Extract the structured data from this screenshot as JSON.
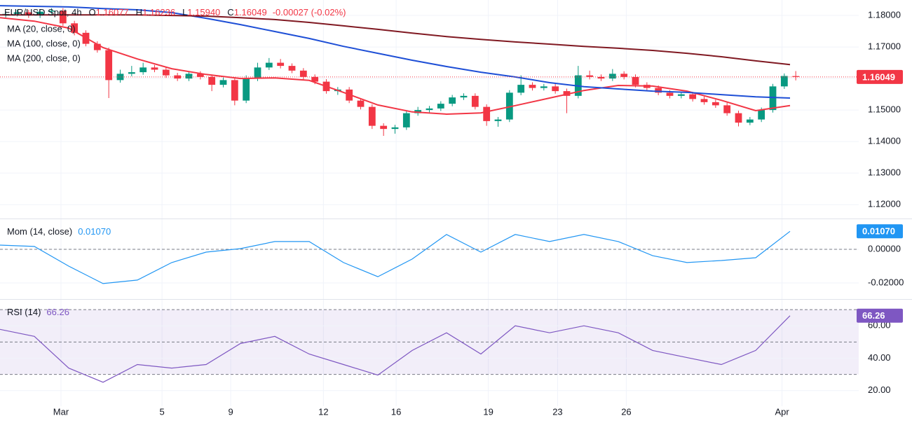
{
  "chart_data": [
    {
      "type": "candlestick",
      "title": "EUR/USD Spot, 4h",
      "ohlc_labels": [
        {
          "label": "O",
          "value": "1.16077"
        },
        {
          "label": "H",
          "value": "1.16236"
        },
        {
          "label": "L",
          "value": "1.15940"
        },
        {
          "label": "C",
          "value": "1.16049"
        }
      ],
      "change": "-0.00027 (-0.02%)",
      "x": [
        1,
        3,
        5,
        7,
        9,
        11,
        13,
        15,
        17,
        19,
        21,
        23,
        25,
        27,
        29,
        31,
        33,
        35,
        37,
        39,
        41,
        43,
        45,
        47,
        49,
        51,
        53,
        55,
        57,
        59,
        61,
        63,
        65,
        67,
        69,
        71,
        73,
        75,
        77,
        79,
        81,
        83,
        85,
        87,
        89,
        91,
        93,
        95,
        97,
        99,
        101,
        103,
        105,
        107,
        109,
        111,
        113,
        115,
        117,
        119,
        121,
        123,
        125,
        127,
        129,
        131,
        133,
        135,
        137,
        139
      ],
      "open": [
        1.18,
        1.1805,
        1.181,
        1.18,
        1.1812,
        1.1815,
        1.1775,
        1.1745,
        1.171,
        1.169,
        1.1595,
        1.1615,
        1.162,
        1.1635,
        1.1628,
        1.161,
        1.16,
        1.1615,
        1.1605,
        1.158,
        1.1595,
        1.153,
        1.16,
        1.1635,
        1.165,
        1.164,
        1.1625,
        1.1605,
        1.159,
        1.156,
        1.1565,
        1.153,
        1.151,
        1.145,
        1.144,
        1.1445,
        1.149,
        1.15,
        1.1505,
        1.152,
        1.154,
        1.1545,
        1.151,
        1.1465,
        1.147,
        1.1555,
        1.158,
        1.157,
        1.1575,
        1.156,
        1.1545,
        1.161,
        1.1605,
        1.16,
        1.1615,
        1.1605,
        1.158,
        1.157,
        1.1555,
        1.1545,
        1.155,
        1.1535,
        1.1525,
        1.1515,
        1.149,
        1.146,
        1.147,
        1.15,
        1.1575,
        1.16077
      ],
      "high": [
        1.1813,
        1.1818,
        1.1818,
        1.182,
        1.1823,
        1.1823,
        1.1783,
        1.1753,
        1.1718,
        1.1698,
        1.1628,
        1.164,
        1.165,
        1.1643,
        1.1636,
        1.1618,
        1.1623,
        1.1623,
        1.1613,
        1.1603,
        1.1603,
        1.161,
        1.165,
        1.1665,
        1.1662,
        1.1648,
        1.1633,
        1.1613,
        1.1598,
        1.1573,
        1.1573,
        1.1538,
        1.1518,
        1.1458,
        1.1453,
        1.1498,
        1.151,
        1.1513,
        1.1528,
        1.1548,
        1.1553,
        1.1553,
        1.1518,
        1.1478,
        1.1563,
        1.161,
        1.1588,
        1.1583,
        1.1583,
        1.1568,
        1.164,
        1.1625,
        1.1613,
        1.163,
        1.1623,
        1.1613,
        1.1588,
        1.1578,
        1.1563,
        1.1558,
        1.1558,
        1.1543,
        1.1533,
        1.1523,
        1.1498,
        1.1478,
        1.1508,
        1.1583,
        1.1616,
        1.16236
      ],
      "low": [
        1.1792,
        1.1797,
        1.1792,
        1.1792,
        1.1804,
        1.1767,
        1.1737,
        1.1702,
        1.1682,
        1.1538,
        1.1587,
        1.1607,
        1.1612,
        1.162,
        1.1602,
        1.1592,
        1.1592,
        1.1597,
        1.156,
        1.1572,
        1.1515,
        1.1522,
        1.1592,
        1.1627,
        1.1632,
        1.1617,
        1.1597,
        1.1582,
        1.1552,
        1.1548,
        1.1522,
        1.1502,
        1.144,
        1.1418,
        1.1425,
        1.1437,
        1.1482,
        1.1492,
        1.1497,
        1.1512,
        1.1532,
        1.1502,
        1.145,
        1.1447,
        1.1462,
        1.1547,
        1.1562,
        1.1562,
        1.1552,
        1.149,
        1.1537,
        1.1597,
        1.1592,
        1.1592,
        1.1597,
        1.1572,
        1.1562,
        1.1547,
        1.1537,
        1.1537,
        1.1527,
        1.1517,
        1.1507,
        1.1482,
        1.1448,
        1.1452,
        1.1462,
        1.1492,
        1.1567,
        1.1594
      ],
      "close": [
        1.1805,
        1.181,
        1.18,
        1.1812,
        1.1815,
        1.1775,
        1.1745,
        1.171,
        1.169,
        1.1595,
        1.1615,
        1.162,
        1.1635,
        1.1628,
        1.161,
        1.16,
        1.1615,
        1.1605,
        1.158,
        1.1595,
        1.153,
        1.16,
        1.1635,
        1.165,
        1.164,
        1.1625,
        1.1605,
        1.159,
        1.156,
        1.1565,
        1.153,
        1.151,
        1.145,
        1.144,
        1.1445,
        1.149,
        1.15,
        1.1505,
        1.152,
        1.154,
        1.1545,
        1.151,
        1.1465,
        1.147,
        1.1555,
        1.158,
        1.157,
        1.1575,
        1.156,
        1.1545,
        1.161,
        1.1605,
        1.16,
        1.1615,
        1.1605,
        1.158,
        1.157,
        1.1555,
        1.1545,
        1.155,
        1.1535,
        1.1525,
        1.1515,
        1.149,
        1.146,
        1.147,
        1.15,
        1.1575,
        1.1608,
        1.16049
      ],
      "up_color": "#089981",
      "down_color": "#f23645",
      "series": [
        {
          "name": "MA (20, close, 0)",
          "color": "#f23645",
          "x": [
            0,
            6,
            12,
            18,
            24,
            30,
            36,
            42,
            48,
            54,
            60,
            66,
            72,
            78,
            84,
            90,
            96,
            102,
            108,
            114,
            120,
            126,
            132,
            138
          ],
          "values": [
            1.1793,
            1.1782,
            1.176,
            1.1698,
            1.1662,
            1.1631,
            1.1613,
            1.16,
            1.1602,
            1.1594,
            1.1556,
            1.1516,
            1.1494,
            1.1487,
            1.1491,
            1.1514,
            1.1538,
            1.1562,
            1.1578,
            1.1576,
            1.156,
            1.1531,
            1.1498,
            1.1514
          ]
        },
        {
          "name": "MA (100, close, 0)",
          "color": "#1e4fd6",
          "x": [
            0,
            6,
            12,
            18,
            24,
            30,
            36,
            42,
            48,
            54,
            60,
            66,
            72,
            78,
            84,
            90,
            96,
            102,
            108,
            114,
            120,
            126,
            132,
            138
          ],
          "values": [
            1.1831,
            1.1829,
            1.1827,
            1.1822,
            1.1818,
            1.1809,
            1.1791,
            1.1771,
            1.1749,
            1.1727,
            1.1702,
            1.168,
            1.1658,
            1.1638,
            1.162,
            1.1605,
            1.1587,
            1.1574,
            1.1567,
            1.156,
            1.1556,
            1.1549,
            1.1542,
            1.1538
          ]
        },
        {
          "name": "MA (200, close, 0)",
          "color": "#801922",
          "x": [
            0,
            6,
            12,
            18,
            24,
            30,
            36,
            42,
            48,
            54,
            60,
            66,
            72,
            78,
            84,
            90,
            96,
            102,
            108,
            114,
            120,
            126,
            132,
            138
          ],
          "values": [
            1.1802,
            1.1802,
            1.1802,
            1.1802,
            1.1802,
            1.18,
            1.1798,
            1.1793,
            1.1787,
            1.1778,
            1.1767,
            1.1756,
            1.1744,
            1.1733,
            1.1724,
            1.1716,
            1.1709,
            1.1702,
            1.1696,
            1.1689,
            1.168,
            1.1669,
            1.1656,
            1.1644
          ]
        }
      ],
      "xlim": [
        0,
        150
      ],
      "ylim": [
        1.1156,
        1.1849
      ],
      "yticks": [
        {
          "value": 1.18,
          "label": "1.18000"
        },
        {
          "value": 1.17,
          "label": "1.17000"
        },
        {
          "value": 1.16,
          "label": "1.16000"
        },
        {
          "value": 1.15,
          "label": "1.15000"
        },
        {
          "value": 1.14,
          "label": "1.14000"
        },
        {
          "value": 1.13,
          "label": "1.13000"
        },
        {
          "value": 1.12,
          "label": "1.12000"
        }
      ],
      "grid": true
    },
    {
      "type": "line",
      "series": [
        {
          "name": "Mom (14, close)",
          "color": "#2196f3",
          "x": [
            0,
            6,
            12,
            18,
            24,
            30,
            36,
            42,
            48,
            54,
            60,
            66,
            72,
            78,
            84,
            90,
            96,
            102,
            108,
            114,
            120,
            126,
            132,
            138
          ],
          "values": [
            0.0025,
            0.0017,
            -0.01,
            -0.0204,
            -0.0183,
            -0.0079,
            -0.0017,
            0.0004,
            0.0046,
            0.0046,
            -0.0079,
            -0.0163,
            -0.0058,
            0.0088,
            -0.0017,
            0.0088,
            0.0046,
            0.0088,
            0.0046,
            -0.0038,
            -0.0079,
            -0.0067,
            -0.005,
            0.0107
          ],
          "last_label": "0.01070"
        }
      ],
      "xlim": [
        0,
        150
      ],
      "ylim": [
        -0.0296,
        0.0179
      ],
      "yticks": [
        {
          "value": 0,
          "label": "0.00000"
        },
        {
          "value": -0.02,
          "label": "-0.02000"
        }
      ],
      "reference_lines": [
        0
      ],
      "grid": true
    },
    {
      "type": "line",
      "series": [
        {
          "name": "RSI (14)",
          "color": "#7e57c2",
          "x": [
            0,
            6,
            12,
            18,
            24,
            30,
            36,
            42,
            48,
            54,
            60,
            66,
            72,
            78,
            84,
            90,
            96,
            102,
            108,
            114,
            120,
            126,
            132,
            138
          ],
          "values": [
            57.8,
            53.5,
            33.9,
            25.2,
            36.1,
            33.9,
            36.1,
            49.1,
            53.5,
            42.6,
            36.1,
            29.6,
            44.8,
            55.7,
            42.6,
            60,
            55.7,
            60,
            55.7,
            44.8,
            40.4,
            36.1,
            44.8,
            66.26
          ]
        }
      ],
      "xlim": [
        0,
        150
      ],
      "ylim": [
        10.4,
        76.1
      ],
      "yticks": [
        {
          "value": 60,
          "label": "60.00"
        },
        {
          "value": 40,
          "label": "40.00"
        },
        {
          "value": 20,
          "label": "20.00"
        }
      ],
      "band": [
        30,
        70
      ],
      "reference_lines": [
        70,
        50,
        30
      ],
      "xticks": [
        {
          "value": 10.65,
          "label": "Mar"
        },
        {
          "value": 28.3,
          "label": "5"
        },
        {
          "value": 40.3,
          "label": "9"
        },
        {
          "value": 56.5,
          "label": "12"
        },
        {
          "value": 69.2,
          "label": "16"
        },
        {
          "value": 85.3,
          "label": "19"
        },
        {
          "value": 97.4,
          "label": "23"
        },
        {
          "value": 109.4,
          "label": "26"
        },
        {
          "value": 136.6,
          "label": "Apr"
        }
      ],
      "grid": true
    }
  ]
}
